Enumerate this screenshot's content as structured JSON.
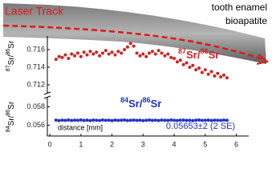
{
  "chart_data": [
    {
      "type": "scatter",
      "annotations": [
        "Laser Track",
        "tooth enamel",
        "bioapatite"
      ],
      "ylabel": "87Sr/86Sr",
      "xlim": [
        -0.08,
        6.4
      ],
      "ylim": [
        0.711,
        0.7175
      ],
      "yticks": [
        0.712,
        0.714,
        0.716
      ],
      "series": [
        {
          "name": "87Sr/86Sr",
          "color": "#d42020",
          "x": [
            0.2,
            0.3,
            0.4,
            0.5,
            0.6,
            0.7,
            0.8,
            0.9,
            1.0,
            1.1,
            1.2,
            1.3,
            1.4,
            1.5,
            1.6,
            1.7,
            1.8,
            1.9,
            2.0,
            2.1,
            2.2,
            2.3,
            2.4,
            2.5,
            2.6,
            2.7,
            2.8,
            2.9,
            3.0,
            3.1,
            3.2,
            3.3,
            3.4,
            3.5,
            3.6,
            3.7,
            3.8,
            3.9,
            4.0,
            4.1,
            4.2,
            4.3,
            4.4,
            4.5,
            4.6,
            4.7,
            4.8,
            4.9,
            5.0,
            5.1,
            5.2,
            5.3,
            5.4,
            5.5,
            5.6,
            5.7
          ],
          "values": [
            0.7149,
            0.7152,
            0.7151,
            0.7154,
            0.715,
            0.7155,
            0.7153,
            0.7156,
            0.7152,
            0.7157,
            0.7154,
            0.7158,
            0.7155,
            0.7157,
            0.7153,
            0.7156,
            0.7159,
            0.7155,
            0.7157,
            0.7154,
            0.7158,
            0.7156,
            0.716,
            0.7163,
            0.7167,
            0.7164,
            0.7156,
            0.7153,
            0.7155,
            0.7152,
            0.7156,
            0.7158,
            0.7155,
            0.7159,
            0.7156,
            0.7153,
            0.7155,
            0.7151,
            0.715,
            0.7146,
            0.7148,
            0.7143,
            0.7145,
            0.714,
            0.7142,
            0.7137,
            0.7139,
            0.7134,
            0.7137,
            0.7132,
            0.7135,
            0.713,
            0.7133,
            0.7129,
            0.7131,
            0.7128
          ]
        }
      ]
    },
    {
      "type": "scatter",
      "annotations": [
        "0.05653±2 (2 SE)"
      ],
      "xlabel": "distance [mm]",
      "ylabel": "84Sr/86Sr",
      "xlim": [
        -0.08,
        6.4
      ],
      "xticks": [
        0,
        1,
        2,
        3,
        4,
        5,
        6
      ],
      "ylim": [
        0.0548,
        0.059
      ],
      "yticks": [
        0.056,
        0.058
      ],
      "series": [
        {
          "name": "84Sr/86Sr",
          "color": "#2030c8",
          "x": [
            0.2,
            0.3,
            0.4,
            0.5,
            0.6,
            0.7,
            0.8,
            0.9,
            1.0,
            1.1,
            1.2,
            1.3,
            1.4,
            1.5,
            1.6,
            1.7,
            1.8,
            1.9,
            2.0,
            2.1,
            2.2,
            2.3,
            2.4,
            2.5,
            2.6,
            2.7,
            2.8,
            2.9,
            3.0,
            3.1,
            3.2,
            3.3,
            3.4,
            3.5,
            3.6,
            3.7,
            3.8,
            3.9,
            4.0,
            4.1,
            4.2,
            4.3,
            4.4,
            4.5,
            4.6,
            4.7,
            4.8,
            4.9,
            5.0,
            5.1,
            5.2,
            5.3,
            5.4,
            5.5,
            5.6,
            5.7
          ],
          "values": [
            0.05655,
            0.0565,
            0.05654,
            0.05652,
            0.05656,
            0.05651,
            0.05654,
            0.05653,
            0.05657,
            0.05652,
            0.05654,
            0.0565,
            0.05655,
            0.05653,
            0.05651,
            0.05656,
            0.05653,
            0.05654,
            0.0565,
            0.05655,
            0.05652,
            0.05654,
            0.05656,
            0.05651,
            0.05653,
            0.05655,
            0.05652,
            0.05654,
            0.0565,
            0.05653,
            0.05656,
            0.05652,
            0.05654,
            0.05651,
            0.05655,
            0.05653,
            0.05652,
            0.05656,
            0.05653,
            0.05651,
            0.05654,
            0.05655,
            0.05652,
            0.05653,
            0.0565,
            0.05654,
            0.05656,
            0.05652,
            0.05653,
            0.05655,
            0.05651,
            0.05654,
            0.05653,
            0.05652,
            0.05655,
            0.05653
          ]
        }
      ]
    }
  ]
}
